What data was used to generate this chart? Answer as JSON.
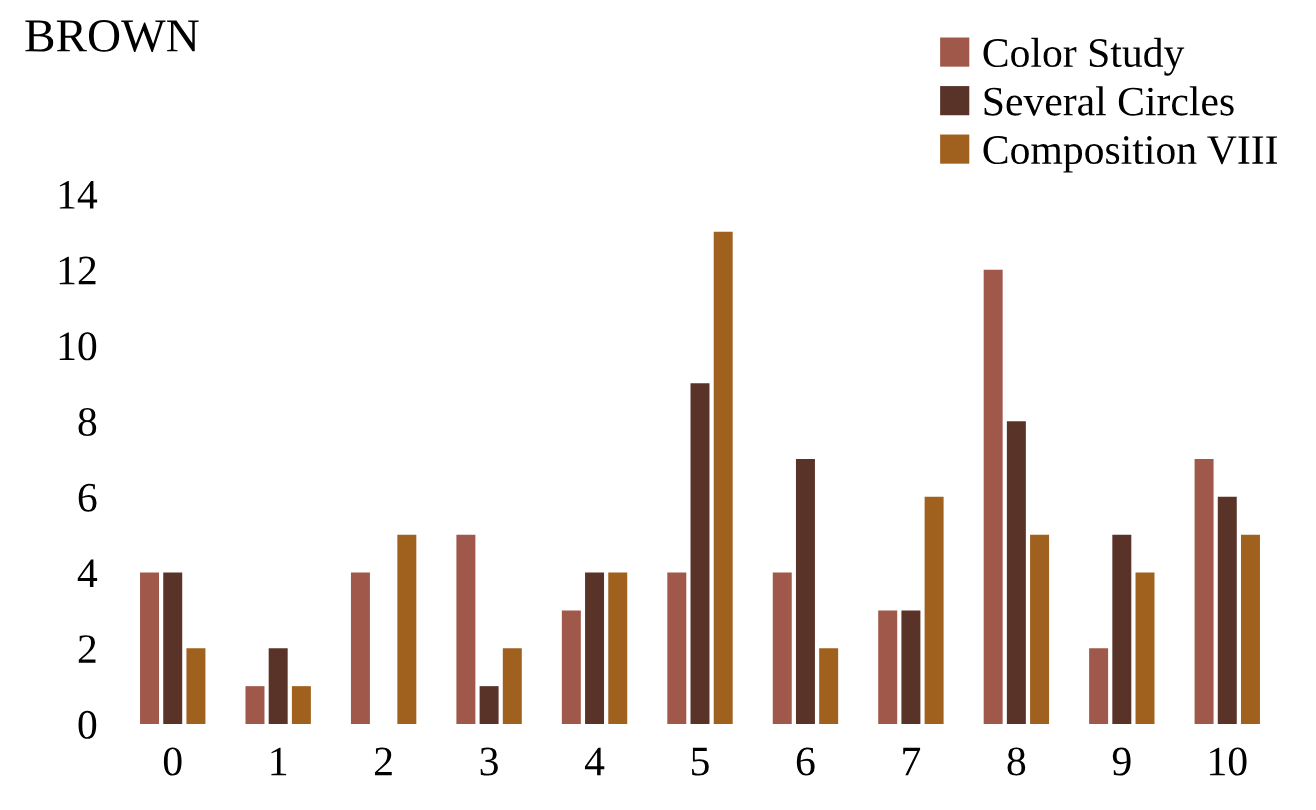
{
  "chart_data": {
    "type": "bar",
    "title": "BROWN",
    "categories": [
      "0",
      "1",
      "2",
      "3",
      "4",
      "5",
      "6",
      "7",
      "8",
      "9",
      "10"
    ],
    "series": [
      {
        "name": "Color Study",
        "color": "#a0584a",
        "values": [
          4,
          1,
          4,
          5,
          3,
          4,
          4,
          3,
          12,
          2,
          7
        ]
      },
      {
        "name": "Several Circles",
        "color": "#5a3328",
        "values": [
          4,
          2,
          0,
          1,
          4,
          9,
          7,
          3,
          8,
          5,
          6
        ]
      },
      {
        "name": "Composition VIII",
        "color": "#a0611f",
        "values": [
          2,
          1,
          5,
          2,
          4,
          13,
          2,
          6,
          5,
          4,
          5
        ]
      }
    ],
    "ylim": [
      0,
      14
    ],
    "yticks": [
      0,
      2,
      4,
      6,
      8,
      10,
      12,
      14
    ],
    "grid": false,
    "legend": "top right"
  }
}
